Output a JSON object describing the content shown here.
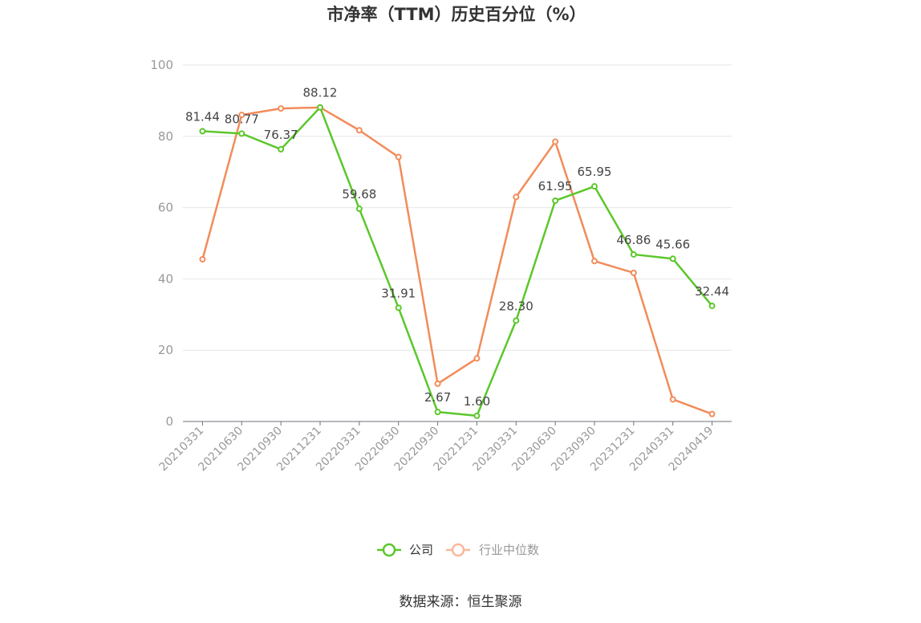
{
  "chart_data": {
    "type": "line",
    "title": "市净率（TTM）历史百分位（%）",
    "xlabel": "",
    "ylabel": "",
    "categories": [
      "20210331",
      "20210630",
      "20210930",
      "20211231",
      "20220331",
      "20220630",
      "20220930",
      "20221231",
      "20230331",
      "20230630",
      "20230930",
      "20231231",
      "20240331",
      "20240419"
    ],
    "ylim": [
      0,
      100
    ],
    "yticks": [
      0,
      20,
      40,
      60,
      80,
      100
    ],
    "grid": true,
    "legend_position": "bottom",
    "series": [
      {
        "name": "公司",
        "color": "#5cc72b",
        "values": [
          81.44,
          80.77,
          76.37,
          88.12,
          59.68,
          31.91,
          2.67,
          1.6,
          28.3,
          61.95,
          65.95,
          46.86,
          45.66,
          32.44
        ],
        "labels": [
          "81.44",
          "80.77",
          "76.37",
          "88.12",
          "59.68",
          "31.91",
          "2.67",
          "1.60",
          "28.30",
          "61.95",
          "65.95",
          "46.86",
          "45.66",
          "32.44"
        ]
      },
      {
        "name": "行业中位数",
        "color": "#f28c5a",
        "values": [
          45.5,
          86.0,
          87.8,
          88.1,
          81.7,
          74.2,
          10.6,
          17.7,
          63.0,
          78.5,
          45.0,
          41.7,
          6.2,
          2.1
        ]
      }
    ]
  },
  "footer": {
    "source": "数据来源：恒生聚源"
  }
}
